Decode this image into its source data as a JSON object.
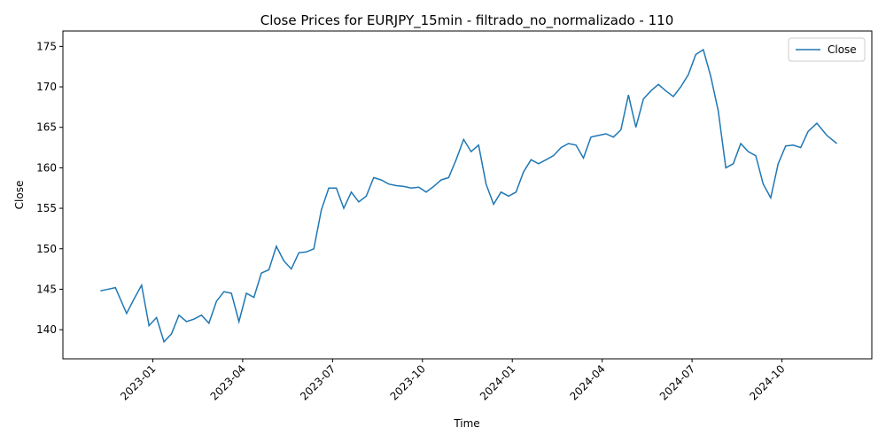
{
  "chart_data": {
    "type": "line",
    "title": "Close Prices for EURJPY_15min - filtrado_no_normalizado - 110",
    "x_label": "Time",
    "y_label": "Close",
    "x": [
      "2022-11",
      "2022-11",
      "2022-12",
      "2022-12",
      "2022-12",
      "2022-12",
      "2023-01",
      "2023-01",
      "2023-01",
      "2023-01",
      "2023-02",
      "2023-02",
      "2023-02",
      "2023-02",
      "2023-03",
      "2023-03",
      "2023-03",
      "2023-03",
      "2023-04",
      "2023-04",
      "2023-04",
      "2023-04",
      "2023-05",
      "2023-05",
      "2023-05",
      "2023-05",
      "2023-06",
      "2023-06",
      "2023-06",
      "2023-06",
      "2023-07",
      "2023-07",
      "2023-07",
      "2023-07",
      "2023-08",
      "2023-08",
      "2023-08",
      "2023-08",
      "2023-09",
      "2023-09",
      "2023-09",
      "2023-09",
      "2023-10",
      "2023-10",
      "2023-10",
      "2023-10",
      "2023-11",
      "2023-11",
      "2023-11",
      "2023-11",
      "2023-12",
      "2023-12",
      "2023-12",
      "2023-12",
      "2024-01",
      "2024-01",
      "2024-01",
      "2024-01",
      "2024-02",
      "2024-02",
      "2024-02",
      "2024-02",
      "2024-03",
      "2024-03",
      "2024-03",
      "2024-03",
      "2024-04",
      "2024-04",
      "2024-04",
      "2024-04",
      "2024-05",
      "2024-05",
      "2024-05",
      "2024-05",
      "2024-06",
      "2024-06",
      "2024-06",
      "2024-06",
      "2024-07",
      "2024-07",
      "2024-07",
      "2024-07",
      "2024-08",
      "2024-08",
      "2024-08",
      "2024-08",
      "2024-09",
      "2024-09",
      "2024-09",
      "2024-09",
      "2024-10",
      "2024-10",
      "2024-10",
      "2024-10",
      "2024-11",
      "2024-11",
      "2024-11"
    ],
    "series": [
      {
        "name": "Close",
        "color": "#1f77b4",
        "values": [
          144.8,
          145.2,
          142.0,
          143.8,
          145.5,
          140.5,
          141.5,
          138.5,
          139.5,
          141.8,
          141.0,
          141.3,
          141.8,
          140.8,
          143.5,
          144.7,
          144.5,
          141.0,
          144.5,
          144.0,
          147.0,
          147.4,
          150.3,
          148.5,
          147.5,
          149.5,
          149.6,
          150.0,
          154.8,
          157.5,
          157.5,
          155.0,
          157.0,
          155.8,
          156.5,
          158.8,
          158.5,
          158.0,
          157.8,
          157.7,
          157.5,
          157.6,
          157.0,
          157.7,
          158.5,
          158.8,
          161.0,
          163.5,
          162.0,
          162.8,
          158.0,
          155.5,
          157.0,
          156.5,
          157.0,
          159.5,
          161.0,
          160.5,
          161.0,
          161.5,
          162.5,
          163.0,
          162.8,
          161.2,
          163.8,
          164.0,
          164.2,
          163.8,
          164.7,
          169.0,
          165.0,
          168.5,
          169.5,
          170.3,
          169.5,
          168.8,
          170.0,
          171.5,
          174.0,
          174.6,
          171.3,
          167.0,
          160.0,
          160.5,
          163.0,
          162.0,
          161.5,
          158.0,
          156.3,
          160.5,
          162.7,
          162.8,
          162.5,
          164.5,
          165.5,
          164.0,
          163.0
        ]
      }
    ],
    "xlim": [
      "2022-10",
      "2024-12"
    ],
    "xticks": [
      "2023-01",
      "2023-04",
      "2023-07",
      "2023-10",
      "2024-01",
      "2024-04",
      "2024-07",
      "2024-10"
    ],
    "ylim": [
      136.4,
      176.9
    ],
    "yticks": [
      140,
      145,
      150,
      155,
      160,
      165,
      170,
      175
    ],
    "legend": "upper right"
  }
}
